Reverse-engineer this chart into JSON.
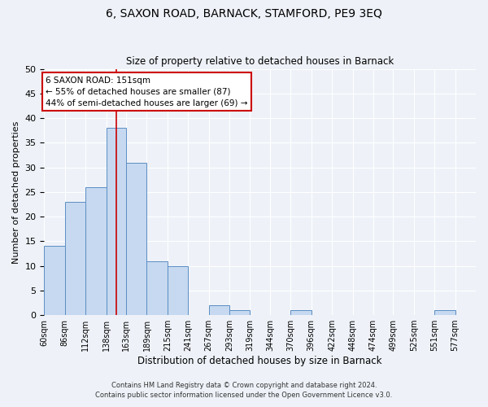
{
  "title": "6, SAXON ROAD, BARNACK, STAMFORD, PE9 3EQ",
  "subtitle": "Size of property relative to detached houses in Barnack",
  "xlabel": "Distribution of detached houses by size in Barnack",
  "ylabel": "Number of detached properties",
  "footnote1": "Contains HM Land Registry data © Crown copyright and database right 2024.",
  "footnote2": "Contains public sector information licensed under the Open Government Licence v3.0.",
  "bin_labels": [
    "60sqm",
    "86sqm",
    "112sqm",
    "138sqm",
    "163sqm",
    "189sqm",
    "215sqm",
    "241sqm",
    "267sqm",
    "293sqm",
    "319sqm",
    "344sqm",
    "370sqm",
    "396sqm",
    "422sqm",
    "448sqm",
    "474sqm",
    "499sqm",
    "525sqm",
    "551sqm",
    "577sqm"
  ],
  "bar_values": [
    14,
    23,
    26,
    38,
    31,
    11,
    10,
    0,
    2,
    1,
    0,
    0,
    1,
    0,
    0,
    0,
    0,
    0,
    0,
    1,
    0
  ],
  "bar_color": "#c6d9f0",
  "bar_edge_color": "#5b8ec4",
  "vline_x": 151,
  "vline_color": "#cc0000",
  "annotation_title": "6 SAXON ROAD: 151sqm",
  "annotation_line1": "← 55% of detached houses are smaller (87)",
  "annotation_line2": "44% of semi-detached houses are larger (69) →",
  "annotation_box_color": "#cc0000",
  "ylim": [
    0,
    50
  ],
  "yticks": [
    0,
    5,
    10,
    15,
    20,
    25,
    30,
    35,
    40,
    45,
    50
  ],
  "bin_edges": [
    60,
    86,
    112,
    138,
    163,
    189,
    215,
    241,
    267,
    293,
    319,
    344,
    370,
    396,
    422,
    448,
    474,
    499,
    525,
    551,
    577,
    603
  ],
  "background_color": "#eef2f8"
}
